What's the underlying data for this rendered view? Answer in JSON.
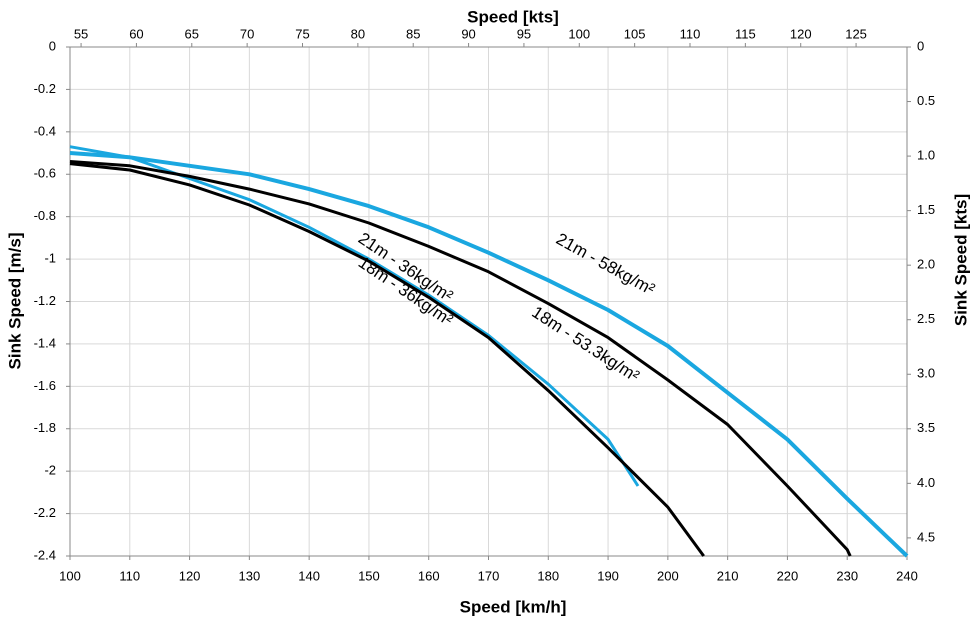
{
  "chart_data": {
    "type": "line",
    "xlabel": "Speed [km/h]",
    "ylabel": "Sink Speed [m/s]",
    "x2label": "Speed [kts]",
    "y2label": "Sink Speed [kts]",
    "xlim": [
      100,
      240
    ],
    "xticks": [
      100,
      110,
      120,
      130,
      140,
      150,
      160,
      170,
      180,
      190,
      200,
      210,
      220,
      230,
      240
    ],
    "ylim": [
      -2.4,
      0
    ],
    "yticks": [
      0,
      -0.2,
      -0.4,
      -0.6,
      -0.8,
      -1,
      -1.2,
      -1.4,
      -1.6,
      -1.8,
      -2,
      -2.2,
      -2.4
    ],
    "x2lim": [
      54,
      129.6
    ],
    "x2ticks": [
      55,
      60,
      65,
      70,
      75,
      80,
      85,
      90,
      95,
      100,
      105,
      110,
      115,
      120,
      125
    ],
    "y2lim": [
      0,
      4.666
    ],
    "y2ticks": [
      0,
      0.5,
      {
        "value": 1,
        "label": "1.0"
      },
      1.5,
      {
        "value": 2,
        "label": "2.0"
      },
      2.5,
      {
        "value": 3,
        "label": "3.0"
      },
      3.5,
      {
        "value": 4,
        "label": "4.0"
      },
      4.5
    ],
    "grid": true,
    "series": [
      {
        "name": "21m - 58kg/m²",
        "color": "#1aa7e0",
        "x": [
          100,
          110,
          120,
          130,
          140,
          150,
          160,
          170,
          180,
          190,
          200,
          210,
          220,
          230,
          240
        ],
        "values": [
          -0.5,
          -0.52,
          -0.56,
          -0.6,
          -0.67,
          -0.75,
          -0.85,
          -0.97,
          -1.1,
          -1.24,
          -1.41,
          -1.63,
          -1.85,
          -2.13,
          -2.4
        ]
      },
      {
        "name": "21m - 36kg/m²",
        "color": "#1aa7e0",
        "x": [
          100,
          110,
          120,
          130,
          140,
          150,
          160,
          170,
          180,
          190,
          195
        ],
        "values": [
          -0.47,
          -0.52,
          -0.62,
          -0.72,
          -0.85,
          -1.0,
          -1.17,
          -1.36,
          -1.59,
          -1.85,
          -2.07
        ]
      },
      {
        "name": "18m - 36kg/m²",
        "color": "#000000",
        "x": [
          100,
          110,
          120,
          130,
          140,
          150,
          160,
          170,
          180,
          190,
          200,
          206
        ],
        "values": [
          -0.55,
          -0.58,
          -0.65,
          -0.745,
          -0.87,
          -1.01,
          -1.18,
          -1.37,
          -1.62,
          -1.89,
          -2.17,
          -2.4
        ]
      },
      {
        "name": "18m - 53.3kg/m²",
        "color": "#000000",
        "x": [
          100,
          110,
          120,
          130,
          140,
          150,
          160,
          170,
          180,
          190,
          200,
          210,
          220,
          230,
          230.5
        ],
        "values": [
          -0.54,
          -0.56,
          -0.61,
          -0.67,
          -0.74,
          -0.83,
          -0.94,
          -1.06,
          -1.21,
          -1.37,
          -1.57,
          -1.78,
          -2.07,
          -2.37,
          -2.4
        ]
      }
    ]
  }
}
